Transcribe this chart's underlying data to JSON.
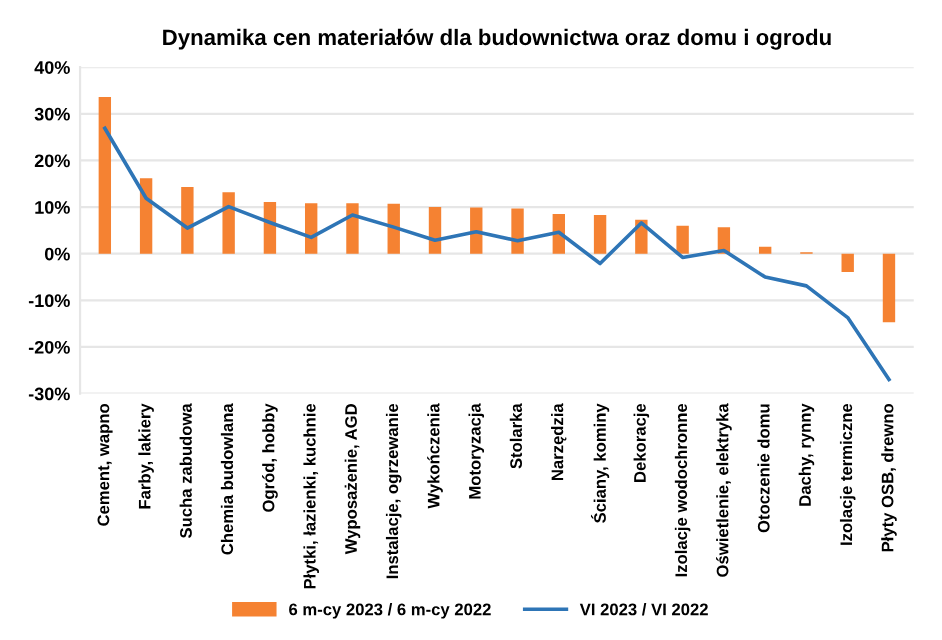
{
  "chart_data": {
    "type": "bar",
    "title": "Dynamika cen materiałów dla budownictwa oraz domu i ogrodu",
    "categories": [
      "Cement, wapno",
      "Farby, lakiery",
      "Sucha zabudowa",
      "Chemia budowlana",
      "Ogród, hobby",
      "Płytki, łazienki, kuchnie",
      "Wyposażenie, AGD",
      "Instalacje, ogrzewanie",
      "Wykończenia",
      "Motoryzacja",
      "Stolarka",
      "Narzędzia",
      "Ściany, kominy",
      "Dekoracje",
      "Izolacje wodochronne",
      "Oświetlenie, elektryka",
      "Otoczenie domu",
      "Dachy, rynny",
      "Izolacje termiczne",
      "Płyty OSB, drewno"
    ],
    "series": [
      {
        "name": "6 m-cy 2023 / 6 m-cy 2022",
        "color": "#f58232",
        "values": [
          33.6,
          16.2,
          14.3,
          13.2,
          11.1,
          10.8,
          10.8,
          10.7,
          10.0,
          9.9,
          9.7,
          8.5,
          8.3,
          7.3,
          6.0,
          5.7,
          1.5,
          0.3,
          -3.9,
          -14.7
        ]
      },
      {
        "name": "VI 2023 / VI 2022",
        "type": "line",
        "color": "#2e75b6",
        "values": [
          26.9,
          11.9,
          5.5,
          10.1,
          6.7,
          3.5,
          8.3,
          5.7,
          2.9,
          4.7,
          2.8,
          4.6,
          -2.1,
          6.6,
          -0.8,
          0.7,
          -5.0,
          -6.9,
          -13.7,
          -27.0
        ]
      }
    ],
    "ylim": [
      -30,
      40
    ],
    "yticks": [
      {
        "value": -30,
        "label": "-30%"
      },
      {
        "value": -20,
        "label": "-20%"
      },
      {
        "value": -10,
        "label": "-10%"
      },
      {
        "value": 0,
        "label": "0%"
      },
      {
        "value": 10,
        "label": "10%"
      },
      {
        "value": 20,
        "label": "20%"
      },
      {
        "value": 30,
        "label": "30%"
      },
      {
        "value": 40,
        "label": "40%"
      }
    ],
    "grid": "y",
    "legend": "bottom",
    "marker": "none",
    "line_style": "solid"
  }
}
